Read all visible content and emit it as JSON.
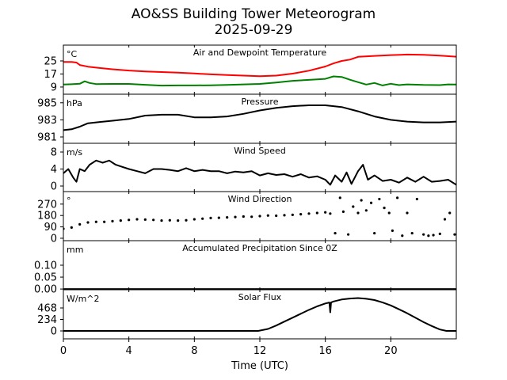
{
  "chart_data": {
    "type": "line",
    "title": "AO&SS Building Tower Meteorogram",
    "subtitle": "2025-09-29",
    "xlabel": "Time (UTC)",
    "xlim": [
      0,
      24
    ],
    "xticks": [
      0,
      4,
      8,
      12,
      16,
      20
    ],
    "panels": [
      {
        "id": "temp",
        "title": "Air and Dewpoint Temperature",
        "unit": "°C",
        "ylim": [
          4.6,
          34.7
        ],
        "yticks": [
          9,
          17,
          25
        ],
        "series": [
          {
            "name": "Air Temperature",
            "color": "#ff0000",
            "type": "line",
            "x": [
              0,
              0.5,
              0.8,
              1,
              1.5,
              2,
              3,
              4,
              5,
              6,
              7,
              8,
              9,
              10,
              11,
              12,
              13,
              14,
              15,
              16,
              16.5,
              17,
              17.5,
              18,
              19,
              20,
              21,
              22,
              23,
              24
            ],
            "y": [
              24.4,
              24.4,
              24,
              22.5,
              21.5,
              20.9,
              19.9,
              19.1,
              18.6,
              18.2,
              17.8,
              17.3,
              16.8,
              16.4,
              16.0,
              15.6,
              16.0,
              17.2,
              19.0,
              21.6,
              23.5,
              25,
              25.8,
              27.5,
              28.1,
              28.6,
              28.9,
              28.8,
              28.3,
              27.6
            ]
          },
          {
            "name": "Dewpoint",
            "color": "#008000",
            "type": "line",
            "x": [
              0,
              0.5,
              1,
              1.3,
              1.6,
              2,
              3,
              4,
              5,
              6,
              7,
              8,
              9,
              10,
              11,
              12,
              13,
              14,
              15,
              16,
              16.5,
              17,
              17.5,
              18,
              18.5,
              19,
              19.5,
              20,
              20.5,
              21,
              22,
              23,
              23.5,
              24
            ],
            "y": [
              10.5,
              10.7,
              11,
              12.5,
              11.5,
              10.8,
              10.9,
              10.9,
              10.4,
              9.9,
              10.0,
              10.0,
              10.1,
              10.3,
              10.6,
              10.9,
              11.8,
              12.8,
              13.4,
              14.0,
              15.5,
              15.2,
              13.5,
              12,
              10.5,
              11.5,
              10,
              11,
              10.2,
              10.6,
              10.3,
              10.2,
              10.6,
              10.5
            ]
          }
        ]
      },
      {
        "id": "pressure",
        "title": "Pressure",
        "unit": "hPa",
        "ylim": [
          980.26,
          986.0
        ],
        "yticks": [
          981,
          983,
          985
        ],
        "series": [
          {
            "name": "Pressure",
            "color": "#000000",
            "type": "line",
            "x": [
              0,
              0.5,
              1,
              1.5,
              2,
              3,
              4,
              5,
              6,
              7,
              8,
              9,
              10,
              11,
              12,
              13,
              14,
              15,
              16,
              17,
              18,
              19,
              20,
              21,
              22,
              23,
              24
            ],
            "y": [
              981.8,
              981.9,
              982.2,
              982.6,
              982.7,
              982.9,
              983.1,
              983.5,
              983.6,
              983.6,
              983.3,
              983.3,
              983.4,
              983.7,
              984.1,
              984.4,
              984.6,
              984.7,
              984.7,
              984.5,
              984.0,
              983.4,
              983.0,
              982.8,
              982.7,
              982.7,
              982.8
            ]
          }
        ]
      },
      {
        "id": "wind_speed",
        "title": "Wind Speed",
        "unit": "m/s",
        "ylim": [
          -1.3,
          10.05
        ],
        "yticks": [
          0,
          4,
          8
        ],
        "series": [
          {
            "name": "Wind Speed",
            "color": "#000000",
            "type": "line",
            "x": [
              0,
              0.3,
              0.6,
              0.8,
              1,
              1.3,
              1.6,
              2,
              2.4,
              2.8,
              3.2,
              3.6,
              4,
              4.5,
              5,
              5.5,
              6,
              6.5,
              7,
              7.5,
              8,
              8.5,
              9,
              9.5,
              10,
              10.5,
              11,
              11.5,
              12,
              12.5,
              13,
              13.5,
              14,
              14.5,
              15,
              15.5,
              16,
              16.3,
              16.6,
              17,
              17.3,
              17.6,
              18,
              18.3,
              18.6,
              19,
              19.5,
              20,
              20.5,
              21,
              21.5,
              22,
              22.5,
              23,
              23.5,
              24
            ],
            "y": [
              3,
              4,
              2,
              1,
              4,
              3.5,
              5,
              6,
              5.5,
              6,
              5,
              4.5,
              4,
              3.5,
              3,
              4,
              4,
              3.8,
              3.5,
              4.2,
              3.5,
              3.8,
              3.5,
              3.5,
              3,
              3.4,
              3.2,
              3.5,
              2.5,
              3,
              2.6,
              2.8,
              2.2,
              2.8,
              2.0,
              2.3,
              1.5,
              0.3,
              2.5,
              1,
              3.2,
              0.5,
              3.5,
              5,
              1.5,
              2.5,
              1.2,
              1.5,
              0.8,
              2,
              1,
              2.2,
              1,
              1.2,
              1.5,
              0.3
            ]
          }
        ]
      },
      {
        "id": "wind_direction",
        "title": "Wind Direction",
        "unit": "°",
        "ylim": [
          -19,
          369
        ],
        "yticks": [
          0,
          90,
          180,
          270
        ],
        "series": [
          {
            "name": "Wind Direction",
            "color": "#000000",
            "type": "scatter",
            "x": [
              0,
              0.5,
              1,
              1.5,
              2,
              2.5,
              3,
              3.5,
              4,
              4.5,
              5,
              5.5,
              6,
              6.5,
              7,
              7.5,
              8,
              8.5,
              9,
              9.5,
              10,
              10.5,
              11,
              11.5,
              12,
              12.5,
              13,
              13.5,
              14,
              14.5,
              15,
              15.5,
              16,
              16.3,
              16.6,
              16.9,
              17.1,
              17.4,
              17.7,
              18,
              18.2,
              18.5,
              18.8,
              19,
              19.3,
              19.6,
              19.9,
              20.1,
              20.4,
              20.7,
              21,
              21.3,
              21.6,
              22,
              22.3,
              22.6,
              23,
              23.3,
              23.6,
              23.9
            ],
            "y": [
              75,
              85,
              110,
              125,
              130,
              130,
              135,
              140,
              145,
              150,
              148,
              145,
              140,
              142,
              140,
              142,
              150,
              155,
              160,
              162,
              165,
              168,
              172,
              170,
              175,
              180,
              178,
              182,
              185,
              190,
              195,
              200,
              205,
              195,
              40,
              320,
              210,
              30,
              250,
              200,
              300,
              220,
              280,
              40,
              310,
              240,
              200,
              60,
              320,
              20,
              200,
              40,
              310,
              30,
              20,
              25,
              35,
              150,
              200,
              30
            ]
          }
        ]
      },
      {
        "id": "precip",
        "title": "Accumulated Precipitation Since 0Z",
        "unit": "mm",
        "ylim": [
          -0.003,
          0.203
        ],
        "yticks": [
          0.0,
          0.05,
          0.1
        ],
        "ytick_labels": [
          "0.00",
          "0.05",
          "0.10"
        ],
        "series": [
          {
            "name": "Accumulated Precipitation",
            "color": "#000000",
            "type": "line",
            "x": [
              0,
              24
            ],
            "y": [
              0,
              0
            ]
          }
        ]
      },
      {
        "id": "solar",
        "title": "Solar Flux",
        "unit": "W/m^2",
        "ylim": [
          -161,
          839
        ],
        "yticks": [
          0,
          234,
          468
        ],
        "series": [
          {
            "name": "Solar Flux",
            "color": "#000000",
            "type": "line",
            "x": [
              0,
              11.9,
              12.5,
              13,
              13.5,
              14,
              14.5,
              15,
              15.5,
              16,
              16.25,
              16.3,
              16.35,
              16.5,
              17,
              17.5,
              18,
              18.5,
              19,
              19.5,
              20,
              20.5,
              21,
              21.5,
              22,
              22.5,
              23,
              23.4,
              24
            ],
            "y": [
              0,
              0,
              40,
              110,
              190,
              270,
              350,
              430,
              500,
              560,
              580,
              380,
              580,
              600,
              640,
              660,
              670,
              655,
              630,
              580,
              520,
              440,
              360,
              270,
              180,
              100,
              30,
              0,
              0
            ]
          }
        ]
      }
    ]
  }
}
